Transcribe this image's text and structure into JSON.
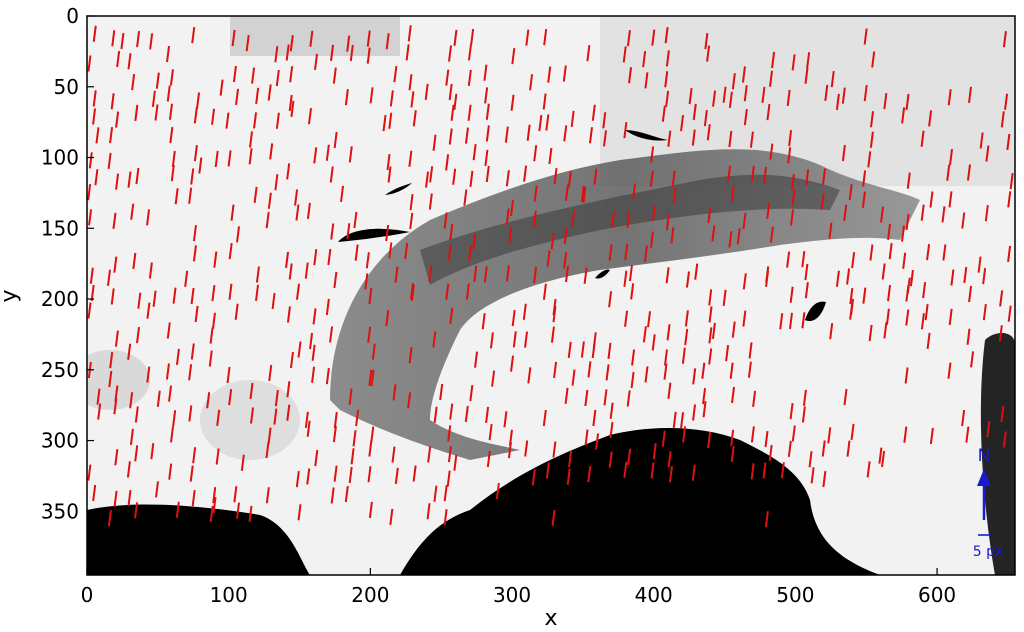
{
  "chart_data": {
    "type": "quiver",
    "title": "",
    "xlabel": "x",
    "ylabel": "y",
    "xlim": [
      0,
      655
    ],
    "ylim": [
      395,
      0
    ],
    "y_axis_inverted": true,
    "xticks": [
      0,
      100,
      200,
      300,
      400,
      500,
      600
    ],
    "yticks": [
      0,
      50,
      100,
      150,
      200,
      250,
      300,
      350
    ],
    "xtick_labels": [
      "0",
      "100",
      "200",
      "300",
      "400",
      "500",
      "600"
    ],
    "ytick_labels": [
      "0",
      "50",
      "100",
      "150",
      "200",
      "250",
      "300",
      "350"
    ],
    "grid": false,
    "background": "grayscale satellite image of a mountain range; black regions top-left-free, lower left, lower centre and a few lakes",
    "vector_color": "#dd1111",
    "vector_direction": "nearly vertical, pointing southward",
    "vector_length_px": 16,
    "vector_lean_dx": 2,
    "sample_vectors": [
      [
        25,
        12
      ],
      [
        50,
        40
      ],
      [
        95,
        45
      ],
      [
        145,
        60
      ],
      [
        210,
        70
      ],
      [
        260,
        55
      ],
      [
        320,
        70
      ],
      [
        380,
        75
      ],
      [
        420,
        70
      ],
      [
        450,
        50
      ],
      [
        530,
        55
      ],
      [
        30,
        110
      ],
      [
        80,
        100
      ],
      [
        130,
        90
      ],
      [
        180,
        120
      ],
      [
        240,
        110
      ],
      [
        300,
        130
      ],
      [
        350,
        120
      ],
      [
        410,
        140
      ],
      [
        460,
        150
      ],
      [
        20,
        170
      ],
      [
        70,
        180
      ],
      [
        120,
        190
      ],
      [
        170,
        200
      ],
      [
        230,
        190
      ],
      [
        280,
        210
      ],
      [
        330,
        200
      ],
      [
        380,
        180
      ],
      [
        430,
        175
      ],
      [
        480,
        180
      ],
      [
        530,
        180
      ],
      [
        580,
        185
      ],
      [
        630,
        170
      ],
      [
        150,
        230
      ],
      [
        200,
        250
      ],
      [
        250,
        260
      ],
      [
        300,
        240
      ],
      [
        350,
        230
      ],
      [
        400,
        225
      ],
      [
        440,
        220
      ],
      [
        490,
        210
      ],
      [
        540,
        200
      ],
      [
        590,
        210
      ],
      [
        20,
        270
      ],
      [
        60,
        290
      ],
      [
        110,
        310
      ],
      [
        200,
        300
      ],
      [
        260,
        310
      ],
      [
        310,
        300
      ],
      [
        360,
        295
      ],
      [
        420,
        280
      ],
      [
        470,
        290
      ],
      [
        520,
        300
      ],
      [
        30,
        335
      ],
      [
        90,
        340
      ],
      [
        150,
        345
      ],
      [
        290,
        330
      ],
      [
        340,
        320
      ],
      [
        380,
        315
      ],
      [
        560,
        305
      ]
    ],
    "annotation": {
      "north_label": "N",
      "scale_label": "5 px",
      "color": "#1a1ad0"
    }
  },
  "colors": {
    "vector": "#dd1111",
    "annotation": "#1a1ad0",
    "sea": "#000000",
    "land_light": "#f4f4f4"
  }
}
